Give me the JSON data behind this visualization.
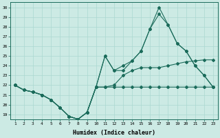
{
  "xlabel": "Humidex (Indice chaleur)",
  "xlim": [
    0.5,
    23.5
  ],
  "ylim": [
    18.5,
    30.5
  ],
  "yticks": [
    19,
    20,
    21,
    22,
    23,
    24,
    25,
    26,
    27,
    28,
    29,
    30
  ],
  "xticks": [
    1,
    2,
    3,
    4,
    5,
    6,
    7,
    8,
    9,
    10,
    11,
    12,
    13,
    14,
    15,
    16,
    17,
    18,
    19,
    20,
    21,
    22,
    23
  ],
  "bg_color": "#cceae4",
  "line_color": "#1a6b5a",
  "grid_color": "#aad8d0",
  "line1": [
    22,
    21.5,
    21.3,
    21,
    20.5,
    19.7,
    18.8,
    18.5,
    19.2,
    21.8,
    21.8,
    21.8,
    21.8,
    21.8,
    21.8,
    21.8,
    21.8,
    21.8,
    21.8,
    21.8,
    21.8,
    21.8,
    21.8
  ],
  "line2": [
    22,
    21.5,
    21.3,
    21,
    20.5,
    19.7,
    18.8,
    18.5,
    19.2,
    21.8,
    21.8,
    22.0,
    23.0,
    23.5,
    23.8,
    23.8,
    23.8,
    24.0,
    24.2,
    24.4,
    24.5,
    24.6,
    24.6
  ],
  "line3": [
    22,
    21.5,
    21.3,
    21,
    20.5,
    19.7,
    18.8,
    18.5,
    19.2,
    21.8,
    25.0,
    23.5,
    23.5,
    24.5,
    25.5,
    27.8,
    29.3,
    28.2,
    26.3,
    25.5,
    24.0,
    23.0,
    21.8
  ],
  "line4": [
    22,
    21.5,
    21.3,
    21,
    20.5,
    19.7,
    18.8,
    18.5,
    19.2,
    21.8,
    25.0,
    23.5,
    24.0,
    24.5,
    25.5,
    27.8,
    30.0,
    28.2,
    26.3,
    25.5,
    24.0,
    23.0,
    21.8
  ]
}
